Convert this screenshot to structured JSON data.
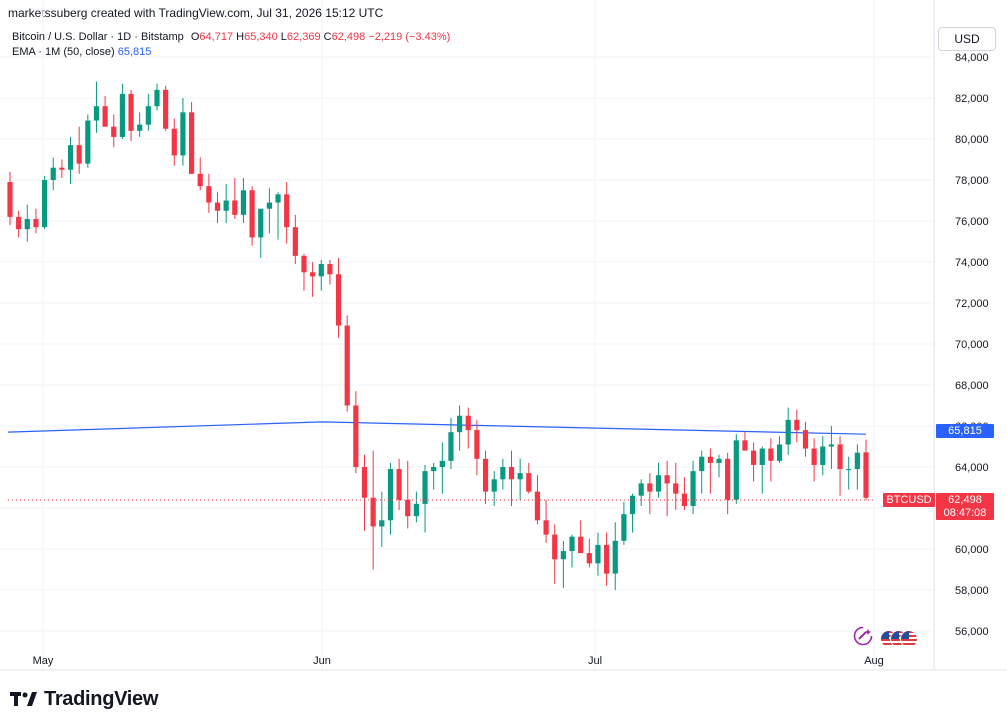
{
  "caption": "marketssuberg created with TradingView.com, Jul 31, 2026 15:12 UTC",
  "legend": {
    "symbol": "Bitcoin / U.S. Dollar · 1D · Bitstamp",
    "o_key": "O",
    "o": "64,717",
    "h_key": "H",
    "h": "65,340",
    "l_key": "L",
    "l": "62,369",
    "c_key": "C",
    "c": "62,498",
    "change": "−2,219 (−3.43%)",
    "ema_label": "EMA · 1M (50, close)",
    "ema_value": "65,815"
  },
  "currency": "USD",
  "price_labels": {
    "ema": "65,815",
    "last": "62,498",
    "timer": "08:47:08",
    "symbol_tag": "BTCUSD"
  },
  "brand": "TradingView",
  "colors": {
    "up": "#089981",
    "down": "#f23645",
    "ema": "#2962ff",
    "grid": "#f0f3fa"
  },
  "chart_data": {
    "type": "candlestick",
    "y_ticks": [
      "84,000",
      "82,000",
      "80,000",
      "78,000",
      "76,000",
      "74,000",
      "72,000",
      "70,000",
      "68,000",
      "66,000",
      "64,000",
      "62,000",
      "60,000",
      "58,000",
      "56,000"
    ],
    "x_ticks": [
      "May",
      "Jun",
      "Jul",
      "Aug"
    ],
    "ylim": [
      55000,
      85000
    ],
    "ema": [
      65700,
      66200,
      65600
    ],
    "ohlc": [
      [
        77900,
        78400,
        75800,
        76200
      ],
      [
        76200,
        76500,
        75200,
        75600
      ],
      [
        75600,
        76800,
        75000,
        76100
      ],
      [
        76100,
        76600,
        75400,
        75700
      ],
      [
        75700,
        78200,
        75600,
        78000
      ],
      [
        78000,
        79100,
        77500,
        78600
      ],
      [
        78600,
        79000,
        78100,
        78500
      ],
      [
        78500,
        80100,
        77800,
        79700
      ],
      [
        79700,
        80600,
        78300,
        78800
      ],
      [
        78800,
        81200,
        78600,
        80900
      ],
      [
        80900,
        82800,
        80300,
        81600
      ],
      [
        81600,
        82100,
        80600,
        80600
      ],
      [
        80600,
        81200,
        79600,
        80100
      ],
      [
        80100,
        82700,
        80000,
        82200
      ],
      [
        82200,
        82400,
        79900,
        80400
      ],
      [
        80400,
        81300,
        80100,
        80700
      ],
      [
        80700,
        82200,
        80400,
        81600
      ],
      [
        81600,
        82700,
        81400,
        82400
      ],
      [
        82400,
        82600,
        80400,
        80500
      ],
      [
        80500,
        81000,
        78700,
        79200
      ],
      [
        79200,
        82000,
        78700,
        81300
      ],
      [
        81300,
        81800,
        78300,
        78300
      ],
      [
        78300,
        79100,
        77500,
        77700
      ],
      [
        77700,
        78300,
        76400,
        76900
      ],
      [
        76900,
        77400,
        75900,
        76500
      ],
      [
        76500,
        77800,
        75900,
        77000
      ],
      [
        77000,
        78100,
        76100,
        76300
      ],
      [
        76300,
        78100,
        75900,
        77500
      ],
      [
        77500,
        77700,
        74800,
        75200
      ],
      [
        75200,
        76500,
        74200,
        76600
      ],
      [
        76600,
        77600,
        75400,
        76900
      ],
      [
        76900,
        77400,
        75100,
        77300
      ],
      [
        77300,
        77900,
        74900,
        75700
      ],
      [
        75700,
        76300,
        73900,
        74300
      ],
      [
        74300,
        74400,
        72600,
        73500
      ],
      [
        73500,
        74000,
        72300,
        73300
      ],
      [
        73300,
        74100,
        72600,
        73900
      ],
      [
        73900,
        74100,
        72900,
        73400
      ],
      [
        73400,
        74200,
        70300,
        70900
      ],
      [
        70900,
        71400,
        66700,
        67000
      ],
      [
        67000,
        67700,
        63700,
        64000
      ],
      [
        64000,
        64600,
        60900,
        62500
      ],
      [
        62500,
        64800,
        59000,
        61100
      ],
      [
        61100,
        62800,
        60100,
        61400
      ],
      [
        61400,
        64200,
        60700,
        63900
      ],
      [
        63900,
        64400,
        61900,
        62400
      ],
      [
        62400,
        64300,
        61000,
        61600
      ],
      [
        61600,
        62800,
        61300,
        62200
      ],
      [
        62200,
        64100,
        60800,
        63800
      ],
      [
        63800,
        64200,
        62900,
        64000
      ],
      [
        64000,
        65200,
        62700,
        64300
      ],
      [
        64300,
        66400,
        63900,
        65700
      ],
      [
        65700,
        67000,
        64800,
        66500
      ],
      [
        66500,
        66900,
        64900,
        65800
      ],
      [
        65800,
        66300,
        63600,
        64400
      ],
      [
        64400,
        64800,
        62200,
        62800
      ],
      [
        62800,
        63800,
        62100,
        63400
      ],
      [
        63400,
        64400,
        62900,
        64000
      ],
      [
        64000,
        64800,
        62100,
        63400
      ],
      [
        63400,
        64400,
        62400,
        63700
      ],
      [
        63700,
        64200,
        62700,
        62800
      ],
      [
        62800,
        63600,
        61200,
        61400
      ],
      [
        61400,
        62400,
        60300,
        60700
      ],
      [
        60700,
        61200,
        58300,
        59500
      ],
      [
        59500,
        60400,
        58100,
        59900
      ],
      [
        59900,
        60700,
        59100,
        60600
      ],
      [
        60600,
        61400,
        59800,
        59800
      ],
      [
        59800,
        60500,
        59100,
        59300
      ],
      [
        59300,
        60800,
        58700,
        60200
      ],
      [
        60200,
        60800,
        58200,
        58800
      ],
      [
        58800,
        61300,
        58000,
        60400
      ],
      [
        60400,
        62300,
        60200,
        61700
      ],
      [
        61700,
        62700,
        60800,
        62600
      ],
      [
        62600,
        63400,
        62100,
        63200
      ],
      [
        63200,
        63700,
        61700,
        62800
      ],
      [
        62800,
        64200,
        62500,
        63600
      ],
      [
        63600,
        64300,
        61600,
        63200
      ],
      [
        63200,
        64200,
        61900,
        62700
      ],
      [
        62700,
        63500,
        61900,
        62100
      ],
      [
        62100,
        64300,
        61700,
        63800
      ],
      [
        63800,
        64800,
        62700,
        64500
      ],
      [
        64500,
        64900,
        62700,
        64200
      ],
      [
        64200,
        64600,
        63500,
        64400
      ],
      [
        64400,
        64700,
        61700,
        62400
      ],
      [
        62400,
        65600,
        62200,
        65300
      ],
      [
        65300,
        65700,
        64900,
        64800
      ],
      [
        64800,
        65200,
        63300,
        64100
      ],
      [
        64100,
        65000,
        62700,
        64900
      ],
      [
        64900,
        65400,
        63300,
        64300
      ],
      [
        64300,
        65500,
        64200,
        65100
      ],
      [
        65100,
        66900,
        64600,
        66300
      ],
      [
        66300,
        66800,
        65200,
        65800
      ],
      [
        65800,
        66200,
        64500,
        64900
      ],
      [
        64900,
        65400,
        63300,
        64100
      ],
      [
        64100,
        65500,
        63600,
        65000
      ],
      [
        65000,
        66000,
        63900,
        65100
      ],
      [
        65100,
        65500,
        62600,
        63900
      ],
      [
        63900,
        64500,
        62900,
        63900
      ],
      [
        63900,
        65100,
        62900,
        64700
      ],
      [
        64717,
        65340,
        62369,
        62498
      ]
    ]
  }
}
